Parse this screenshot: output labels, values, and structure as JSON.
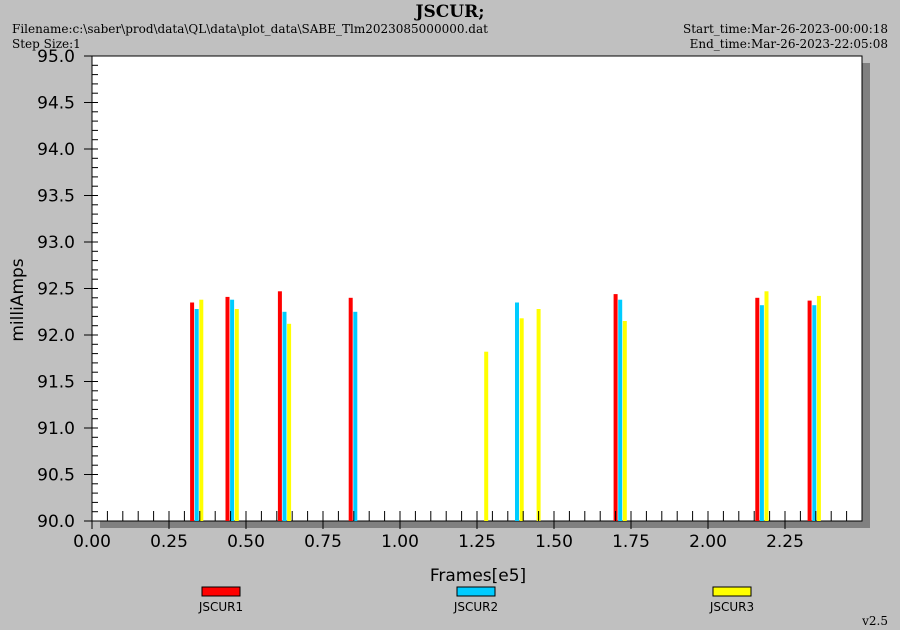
{
  "header": {
    "title": "JSCUR;",
    "filename": "Filename:c:\\saber\\prod\\data\\QL\\data\\plot_data\\SABE_Tlm2023085000000.dat",
    "step_size": "Step Size:1",
    "start_time": "Start_time:Mar-26-2023-00:00:18",
    "end_time": "End_time:Mar-26-2023-22:05:08"
  },
  "footer": {
    "version": "v2.5"
  },
  "chart_data": {
    "type": "bar",
    "xlabel": "Frames[e5]",
    "ylabel": "milliAmps",
    "xlim": [
      0.0,
      2.5
    ],
    "ylim": [
      90.0,
      95.0
    ],
    "x_ticks": [
      "0.00",
      "0.25",
      "0.50",
      "0.75",
      "1.00",
      "1.25",
      "1.50",
      "1.75",
      "2.00",
      "2.25"
    ],
    "y_ticks": [
      "90.0",
      "90.5",
      "91.0",
      "91.5",
      "92.0",
      "92.5",
      "93.0",
      "93.5",
      "94.0",
      "94.5",
      "95.0"
    ],
    "grid": false,
    "legend_position": "bottom",
    "series": [
      {
        "name": "JSCUR1",
        "color": "#ff0000",
        "points": [
          {
            "x": 0.325,
            "y": 92.35
          },
          {
            "x": 0.44,
            "y": 92.41
          },
          {
            "x": 0.61,
            "y": 92.47
          },
          {
            "x": 0.84,
            "y": 92.4
          },
          {
            "x": 1.7,
            "y": 92.44
          },
          {
            "x": 2.16,
            "y": 92.4
          },
          {
            "x": 2.33,
            "y": 92.37
          }
        ]
      },
      {
        "name": "JSCUR2",
        "color": "#00ccff",
        "points": [
          {
            "x": 0.34,
            "y": 92.28
          },
          {
            "x": 0.455,
            "y": 92.38
          },
          {
            "x": 0.625,
            "y": 92.25
          },
          {
            "x": 0.855,
            "y": 92.25
          },
          {
            "x": 1.38,
            "y": 92.35
          },
          {
            "x": 1.715,
            "y": 92.38
          },
          {
            "x": 2.175,
            "y": 92.32
          },
          {
            "x": 2.345,
            "y": 92.32
          }
        ]
      },
      {
        "name": "JSCUR3",
        "color": "#ffff00",
        "points": [
          {
            "x": 0.355,
            "y": 92.38
          },
          {
            "x": 0.47,
            "y": 92.28
          },
          {
            "x": 0.64,
            "y": 92.12
          },
          {
            "x": 1.28,
            "y": 91.82
          },
          {
            "x": 1.395,
            "y": 92.18
          },
          {
            "x": 1.45,
            "y": 92.28
          },
          {
            "x": 1.73,
            "y": 92.15
          },
          {
            "x": 2.19,
            "y": 92.47
          },
          {
            "x": 2.36,
            "y": 92.42
          }
        ]
      }
    ]
  }
}
